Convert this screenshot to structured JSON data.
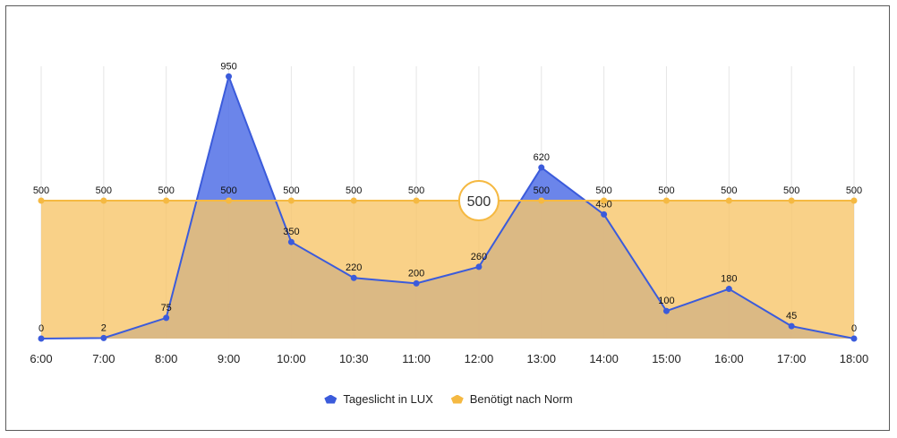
{
  "chart_data": {
    "type": "area",
    "categories": [
      "6:00",
      "7:00",
      "8:00",
      "9:00",
      "10:00",
      "10:30",
      "11:00",
      "12:00",
      "13:00",
      "14:00",
      "15:00",
      "16:00",
      "17:00",
      "18:00"
    ],
    "series": [
      {
        "name": "Tageslicht in LUX",
        "values": [
          0,
          2,
          75,
          950,
          350,
          220,
          200,
          260,
          620,
          450,
          100,
          180,
          45,
          0
        ],
        "color": "#3b5bdb",
        "fill": "#5b78e8"
      },
      {
        "name": "Benötigt nach Norm",
        "values": [
          500,
          500,
          500,
          500,
          500,
          500,
          500,
          500,
          500,
          500,
          500,
          500,
          500,
          500
        ],
        "color": "#f5b942",
        "fill": "#f7c56a"
      }
    ],
    "ylim": [
      0,
      1000
    ],
    "highlight": {
      "category": "12:00",
      "label": "500"
    },
    "legend_position": "bottom",
    "grid": "vertical"
  }
}
